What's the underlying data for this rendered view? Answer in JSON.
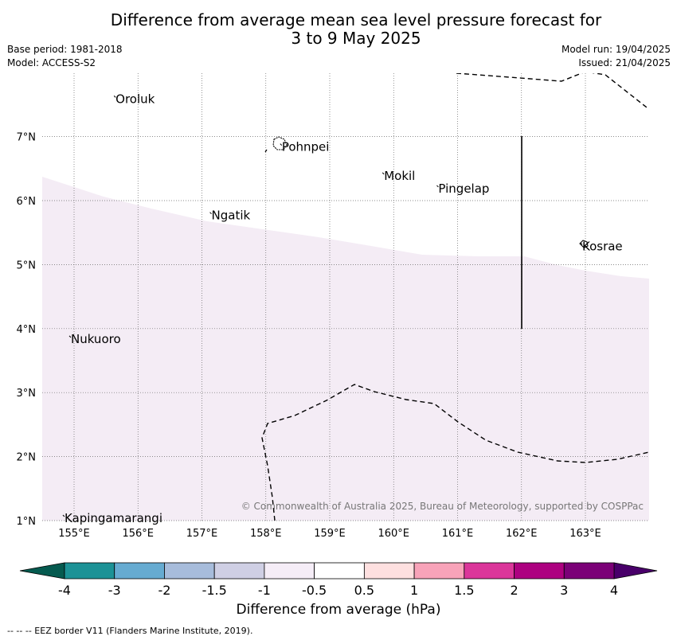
{
  "title_line1": "Difference from average mean sea level pressure forecast for",
  "title_line2": "3 to 9 May 2025",
  "base_period": "Base period: 1981-2018",
  "model": "Model: ACCESS-S2",
  "model_run": "Model run: 19/04/2025",
  "issued": "Issued: 21/04/2025",
  "copyright": "© Commonwealth of Australia 2025, Bureau of Meteorology, supported by COSPPac",
  "map": {
    "lon_range": [
      154.5,
      164.0
    ],
    "lat_range": [
      1.0,
      8.0
    ],
    "lon_ticks": [
      155,
      156,
      157,
      158,
      159,
      160,
      161,
      162,
      163
    ],
    "lon_labels": [
      "155°E",
      "156°E",
      "157°E",
      "158°E",
      "159°E",
      "160°E",
      "161°E",
      "162°E",
      "163°E"
    ],
    "lat_ticks": [
      1,
      2,
      3,
      4,
      5,
      6,
      7
    ],
    "lat_labels": [
      "1°N",
      "2°N",
      "3°N",
      "4°N",
      "5°N",
      "6°N",
      "7°N"
    ],
    "grid": "dotted",
    "places": [
      {
        "name": "Oroluk",
        "lon": 155.65,
        "lat": 7.6
      },
      {
        "name": "Pohnpei",
        "lon": 158.25,
        "lat": 6.85
      },
      {
        "name": "Mokil",
        "lon": 159.85,
        "lat": 6.4
      },
      {
        "name": "Pingelap",
        "lon": 160.7,
        "lat": 6.2
      },
      {
        "name": "Ngatik",
        "lon": 157.15,
        "lat": 5.78
      },
      {
        "name": "Kosrae",
        "lon": 162.95,
        "lat": 5.3
      },
      {
        "name": "Nukuoro",
        "lon": 154.95,
        "lat": 3.85
      },
      {
        "name": "Kapingamarangi",
        "lon": 154.85,
        "lat": 1.05
      }
    ],
    "fill_colour": "#f4ecf5",
    "fill_category": "-1 to -0.5"
  },
  "colorbar": {
    "ticks": [
      "-4",
      "-3",
      "-2",
      "-1.5",
      "-1",
      "-0.5",
      "0.5",
      "1",
      "1.5",
      "2",
      "3",
      "4"
    ],
    "colors": [
      "#1c9296",
      "#66abd1",
      "#a7bcdb",
      "#cfcfe4",
      "#f5edf7",
      "#ffffff",
      "#fee0e0",
      "#f8a3b9",
      "#db369a",
      "#ad0180",
      "#7b0177"
    ],
    "under_color": "#055a4f",
    "over_color": "#49006a",
    "label": "Difference from average (hPa)"
  },
  "footnote": "--  --  -- EEZ border V11 (Flanders Marine Institute, 2019)."
}
